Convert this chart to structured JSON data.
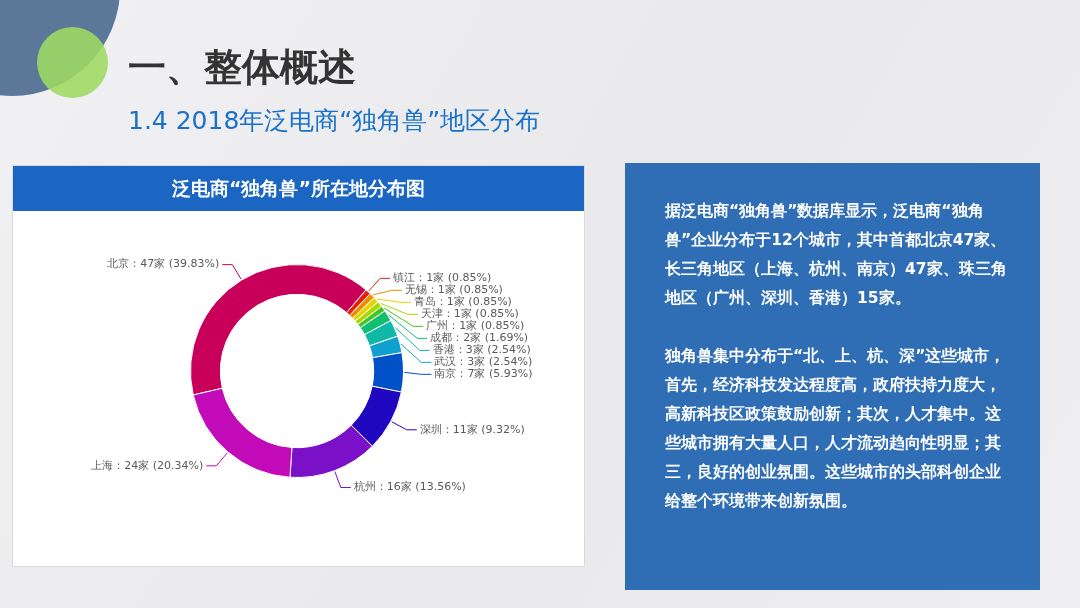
{
  "chart_data": [
    {
      "type": "other",
      "title": "一、整体概述",
      "subtitle": "1.4 2018年泛电商“独角兽”地区分布"
    },
    {
      "type": "donut",
      "title": "泛电商“独角兽”所在地分布图",
      "categories": [
        "北京",
        "镇江",
        "无锡",
        "青岛",
        "天津",
        "广州",
        "成都",
        "香港",
        "武汉",
        "南京",
        "深圳",
        "杭州",
        "上海"
      ],
      "values": [
        47,
        1,
        1,
        1,
        1,
        1,
        2,
        3,
        3,
        7,
        11,
        16,
        24
      ],
      "value_labels": [
        "47家 (39.83%)",
        "1家 (0.85%)",
        "1家 (0.85%)",
        "1家 (0.85%)",
        "1家 (0.85%)",
        "1家 (0.85%)",
        "2家 (1.69%)",
        "3家 (2.54%)",
        "3家 (2.54%)",
        "7家 (5.93%)",
        "11家 (9.32%)",
        "16家 (13.56%)",
        "24家 (20.34%)"
      ],
      "colors": [
        "#c8005a",
        "#e8200a",
        "#f08c00",
        "#e8d400",
        "#a8d800",
        "#40c820",
        "#10c070",
        "#10b8a8",
        "#10a0d0",
        "#0050c8",
        "#2008c0",
        "#7a10c8",
        "#c20ab8"
      ]
    },
    {
      "type": "other",
      "annotations": [
        "据泛电商“独角兽”数据库显示，泛电商“独角兽”企业分布于12个城市，其中首都北京47家、长三角地区（上海、杭州、南京）47家、珠三角地区（广州、深圳、香港）15家。",
        "独角兽集中分布于“北、上、杭、深”这些城市，首先，经济科技发达程度高，政府扶持力度大，高新科技区政策鼓励创新；其次，人才集中。这些城市拥有大量人口，人才流动趋向性明显；其三，良好的创业氛围。这些城市的头部科创企业给整个环境带来创新氛围。"
      ]
    }
  ]
}
